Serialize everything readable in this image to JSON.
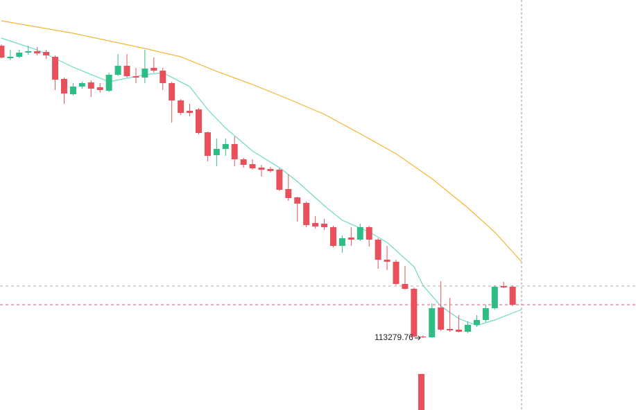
{
  "chart_data": {
    "type": "candlestick",
    "xlim": [
      -0.15,
      70.75
    ],
    "ylim": [
      111200,
      123040
    ],
    "up_color": "#2ebd85",
    "down_color": "#e8505b",
    "open": [
      121720,
      121360,
      121400,
      121520,
      121560,
      121540,
      121400,
      120760,
      120320,
      120540,
      120660,
      120520,
      120420,
      120880,
      121140,
      120840,
      120800,
      121080,
      121000,
      120640,
      120140,
      119840,
      119880,
      119220,
      118560,
      118740,
      118880,
      118440,
      118300,
      118200,
      118160,
      118140,
      117580,
      117340,
      117180,
      116600,
      116580,
      116480,
      115940,
      116180,
      116120,
      116480,
      116120,
      115540,
      115480,
      114840,
      114700,
      113320,
      113300,
      114160,
      113540,
      113520,
      113460,
      113660,
      113800,
      114140,
      114780,
      114760
    ],
    "high": [
      121760,
      121600,
      121600,
      121720,
      121680,
      121600,
      121440,
      120800,
      120640,
      120680,
      120720,
      120640,
      120940,
      121480,
      121480,
      121080,
      121600,
      121380,
      121080,
      120680,
      120180,
      120040,
      119920,
      119240,
      119040,
      119040,
      119100,
      118480,
      118440,
      118280,
      118220,
      118180,
      118000,
      117360,
      117220,
      116800,
      116720,
      116520,
      116240,
      116480,
      116580,
      116520,
      116160,
      115940,
      115540,
      115360,
      114740,
      113360,
      114280,
      114920,
      114440,
      113940,
      113760,
      113940,
      114240,
      114800,
      114900,
      114800
    ],
    "low": [
      121360,
      121300,
      121360,
      121460,
      121440,
      121340,
      120440,
      120040,
      120280,
      120480,
      120240,
      120360,
      120380,
      120840,
      120800,
      120640,
      120640,
      120940,
      120440,
      119500,
      119720,
      119680,
      119160,
      118380,
      118240,
      118540,
      118240,
      118200,
      118140,
      117940,
      118060,
      117520,
      117240,
      116640,
      116480,
      116440,
      116400,
      115900,
      115740,
      115940,
      116080,
      115920,
      115280,
      115240,
      114800,
      114680,
      113300,
      113279.76,
      113290,
      113480,
      113460,
      113440,
      113420,
      113600,
      113740,
      114100,
      114720,
      114200
    ],
    "close": [
      121380,
      121400,
      121520,
      121560,
      121500,
      121440,
      120740,
      120340,
      120540,
      120640,
      120480,
      120440,
      120880,
      121140,
      120840,
      120800,
      121060,
      121000,
      120640,
      120140,
      119780,
      119780,
      119200,
      118540,
      118740,
      118880,
      118440,
      118280,
      118180,
      118140,
      118100,
      117560,
      117320,
      117160,
      116540,
      116500,
      116480,
      115940,
      116160,
      116120,
      116480,
      116120,
      115540,
      115480,
      114840,
      114700,
      113320,
      113300,
      114140,
      113520,
      113500,
      113460,
      113660,
      113800,
      114140,
      114760,
      114740,
      114240
    ],
    "series": [
      {
        "color": "#6fd8c5",
        "x": [
          0,
          4,
          8,
          12,
          16,
          18,
          21,
          23,
          25,
          28,
          31,
          33,
          36,
          38,
          41,
          43,
          46,
          47,
          49,
          51,
          53,
          55,
          57,
          58
        ],
        "values": [
          121940,
          121600,
          121100,
          120680,
          120880,
          120940,
          120540,
          119880,
          119340,
          118680,
          118200,
          117800,
          117100,
          116680,
          116340,
          116040,
          115340,
          114800,
          114200,
          113840,
          113640,
          113800,
          114000,
          114100
        ]
      },
      {
        "color": "#f5b431",
        "x": [
          0,
          8,
          16,
          20,
          24,
          28,
          32,
          36,
          40,
          44,
          48,
          52,
          55,
          58
        ],
        "values": [
          122440,
          122080,
          121640,
          121400,
          120980,
          120600,
          120180,
          119740,
          119180,
          118600,
          117880,
          117040,
          116340,
          115480
        ]
      }
    ],
    "price_lines": [
      {
        "value": 114780,
        "color": "#b0b0b0"
      },
      {
        "value": 114240,
        "color": "#e8505b"
      }
    ],
    "low_label_index": 47
  }
}
